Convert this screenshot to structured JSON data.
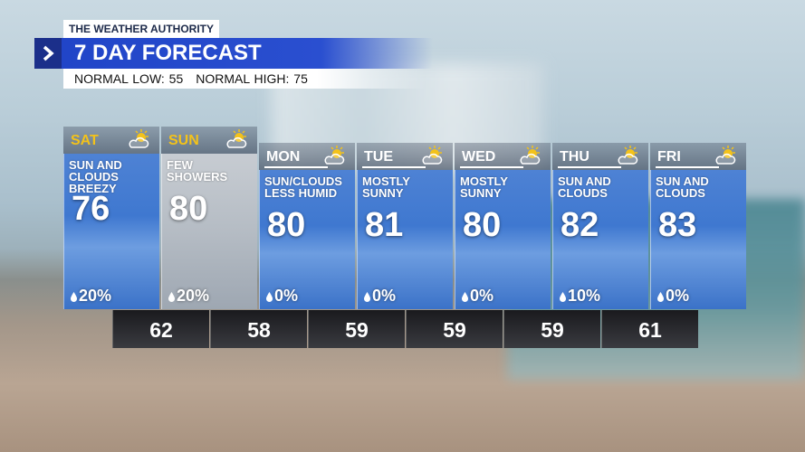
{
  "header": {
    "brand": "THE WEATHER AUTHORITY",
    "title": "7 DAY FORECAST",
    "normal_low": "NORMAL LOW: 55",
    "normal_high": "NORMAL HIGH: 75"
  },
  "days": [
    {
      "day": "SAT",
      "condition": "SUN AND CLOUDS BREEZY",
      "high": "76",
      "precip": "20%"
    },
    {
      "day": "SUN",
      "condition": "FEW SHOWERS",
      "high": "80",
      "precip": "20%"
    },
    {
      "day": "MON",
      "condition": "SUN/CLOUDS LESS HUMID",
      "high": "80",
      "precip": "0%"
    },
    {
      "day": "TUE",
      "condition": "MOSTLY SUNNY",
      "high": "81",
      "precip": "0%"
    },
    {
      "day": "WED",
      "condition": "MOSTLY SUNNY",
      "high": "80",
      "precip": "0%"
    },
    {
      "day": "THU",
      "condition": "SUN AND CLOUDS",
      "high": "82",
      "precip": "10%"
    },
    {
      "day": "FRI",
      "condition": "SUN AND CLOUDS",
      "high": "83",
      "precip": "0%"
    }
  ],
  "lows": [
    "62",
    "58",
    "59",
    "59",
    "59",
    "61"
  ]
}
